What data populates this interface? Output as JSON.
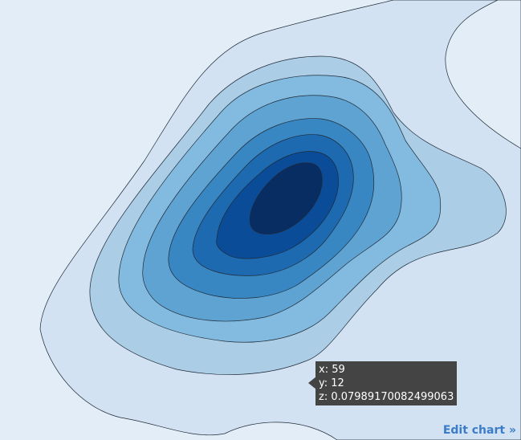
{
  "chart_data": {
    "type": "contour",
    "title": "",
    "xlabel": "",
    "ylabel": "",
    "levels": 9,
    "colorscale": [
      "#d2e2f2",
      "#abcde6",
      "#83badf",
      "#5fa3d3",
      "#3886c2",
      "#1d6ab0",
      "#0a4c97",
      "#082d63"
    ],
    "line_color": "#1f2a36",
    "hover": {
      "x": 59,
      "y": 12,
      "z": 0.07989170082499063
    }
  },
  "tooltip": {
    "x_text": "x: 59",
    "y_text": "y: 12",
    "z_text": "z: 0.07989170082499063"
  },
  "footer": {
    "edit_label": "Edit chart »"
  }
}
